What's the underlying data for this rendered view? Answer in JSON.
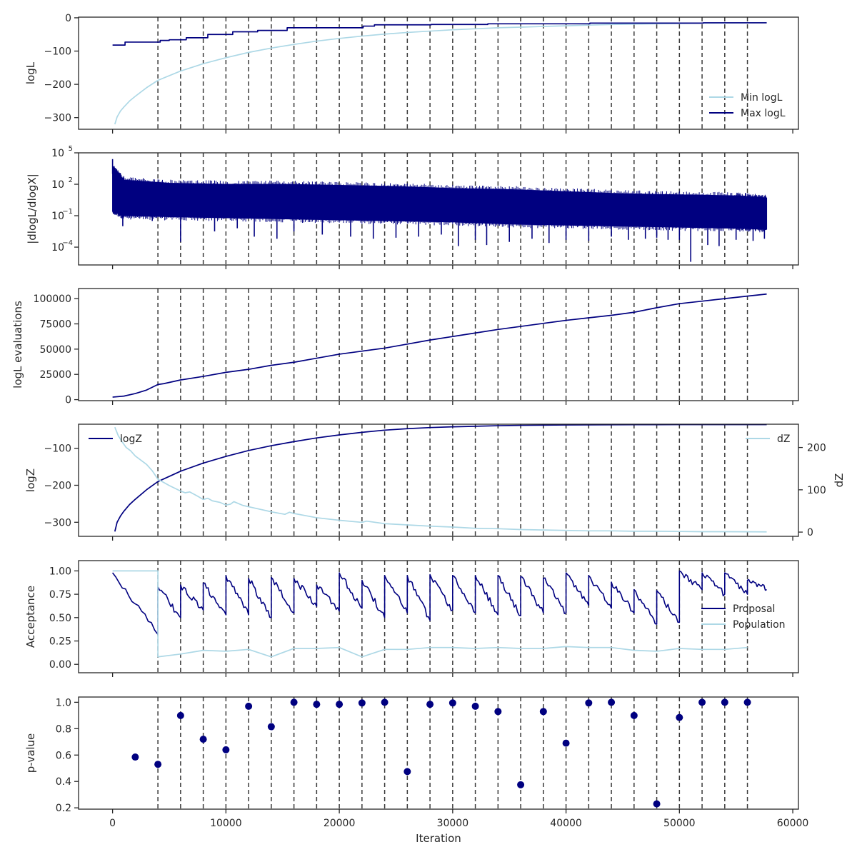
{
  "colors": {
    "dark": "#000080",
    "light": "#add8e6",
    "vline": "#3a3a3a",
    "axis": "#262626"
  },
  "vlines": [
    4000,
    6000,
    8000,
    10000,
    12000,
    14000,
    16000,
    18000,
    20000,
    22000,
    24000,
    26000,
    28000,
    30000,
    32000,
    34000,
    36000,
    38000,
    40000,
    42000,
    44000,
    46000,
    48000,
    50000,
    52000,
    54000,
    56000
  ],
  "xaxis": {
    "label": "Iteration",
    "xlim": [
      -3000,
      60500
    ],
    "ticks": [
      0,
      10000,
      20000,
      30000,
      40000,
      50000,
      60000
    ],
    "tick_labels": [
      "0",
      "10000",
      "20000",
      "30000",
      "40000",
      "50000",
      "60000"
    ]
  },
  "chart_data": [
    {
      "type": "line",
      "ylabel": "logL",
      "ylim": [
        -335,
        2
      ],
      "yticks": [
        0,
        -100,
        -200,
        -300
      ],
      "ytick_labels": [
        "0",
        "−100",
        "−200",
        "−300"
      ],
      "legend": {
        "position": "lower-right",
        "entries": [
          "Min logL",
          "Max logL"
        ]
      },
      "series": [
        {
          "name": "Min logL",
          "color": "light",
          "x": [
            200,
            400,
            700,
            1000,
            1500,
            2000,
            3000,
            4000,
            6000,
            8000,
            10000,
            12000,
            14000,
            16000,
            18000,
            20000,
            22000,
            24000,
            26000,
            28000,
            30000,
            32000,
            34000,
            36000,
            38000,
            40000,
            42000,
            44000,
            46000,
            48000,
            50000,
            52000,
            54000,
            56000,
            57700
          ],
          "y": [
            -320,
            -298,
            -280,
            -268,
            -250,
            -236,
            -210,
            -188,
            -160,
            -138,
            -120,
            -104,
            -91,
            -80,
            -70,
            -62,
            -55,
            -49,
            -44,
            -40,
            -36,
            -33,
            -30,
            -28,
            -26,
            -24,
            -22,
            -20,
            -19,
            -18,
            -17,
            -16,
            -15.5,
            -15,
            -14.5
          ]
        },
        {
          "name": "Max logL",
          "color": "dark",
          "step": true,
          "x": [
            0,
            1000,
            1100,
            4000,
            4200,
            4900,
            5000,
            6400,
            6500,
            8300,
            8400,
            10500,
            10600,
            12700,
            12800,
            15300,
            15400,
            22000,
            22100,
            23000,
            23100,
            28000,
            28100,
            33000,
            33100,
            42000,
            42100,
            52000,
            52100,
            57700
          ],
          "y": [
            -82,
            -82,
            -73,
            -73,
            -68,
            -68,
            -66,
            -66,
            -60,
            -60,
            -50,
            -50,
            -42,
            -42,
            -38,
            -38,
            -30,
            -30,
            -25,
            -25,
            -21,
            -21,
            -20,
            -20,
            -18,
            -18,
            -16,
            -16,
            -15,
            -15
          ]
        }
      ]
    },
    {
      "type": "line",
      "ylabel": "|dlogL/dlogX|",
      "yscale": "log",
      "ylim_log10": [
        -5.7,
        5
      ],
      "yticks_log10": [
        5,
        2,
        -1,
        -4
      ],
      "ytick_labels": [
        "10",
        "10",
        "10",
        "10"
      ],
      "ytick_exponents": [
        "5",
        "2",
        "−1",
        "−4"
      ],
      "band": {
        "name": "|dlogL/dlogX|",
        "color": "dark",
        "x": [
          0,
          1000,
          5000,
          10000,
          15000,
          20000,
          25000,
          30000,
          35000,
          40000,
          45000,
          50000,
          55000,
          57700
        ],
        "upper_log10": [
          3.6,
          2.4,
          2.1,
          2.0,
          2.0,
          1.9,
          1.8,
          1.6,
          1.5,
          1.3,
          1.1,
          1.0,
          0.9,
          0.7
        ],
        "lower_log10": [
          -0.6,
          -1.0,
          -1.1,
          -1.2,
          -1.3,
          -1.4,
          -1.5,
          -1.6,
          -1.8,
          -1.9,
          -2.0,
          -2.1,
          -2.2,
          -2.3
        ]
      },
      "spikes": [
        {
          "x": 0,
          "log10": 4.4
        },
        {
          "x": 900,
          "log10": -2.0
        },
        {
          "x": 3500,
          "log10": -1.5
        },
        {
          "x": 6000,
          "log10": -3.5
        },
        {
          "x": 9000,
          "log10": -2.5
        },
        {
          "x": 11000,
          "log10": -2.2
        },
        {
          "x": 12500,
          "log10": -3.0
        },
        {
          "x": 14500,
          "log10": -3.2
        },
        {
          "x": 16000,
          "log10": -2.5
        },
        {
          "x": 18500,
          "log10": -2.8
        },
        {
          "x": 21000,
          "log10": -3.0
        },
        {
          "x": 23000,
          "log10": -3.2
        },
        {
          "x": 25000,
          "log10": -3.1
        },
        {
          "x": 27000,
          "log10": -3.0
        },
        {
          "x": 29000,
          "log10": -2.8
        },
        {
          "x": 30500,
          "log10": -3.9
        },
        {
          "x": 32000,
          "log10": -3.3
        },
        {
          "x": 33000,
          "log10": -3.8
        },
        {
          "x": 35000,
          "log10": -3.5
        },
        {
          "x": 37000,
          "log10": -3.2
        },
        {
          "x": 38500,
          "log10": -3.6
        },
        {
          "x": 40000,
          "log10": -3.3
        },
        {
          "x": 42000,
          "log10": -3.4
        },
        {
          "x": 44000,
          "log10": -3.0
        },
        {
          "x": 45500,
          "log10": -3.3
        },
        {
          "x": 47000,
          "log10": -3.2
        },
        {
          "x": 48000,
          "log10": -3.1
        },
        {
          "x": 49000,
          "log10": -3.3
        },
        {
          "x": 50000,
          "log10": -3.3
        },
        {
          "x": 51000,
          "log10": -5.4
        },
        {
          "x": 52500,
          "log10": -3.8
        },
        {
          "x": 53500,
          "log10": -3.9
        },
        {
          "x": 55000,
          "log10": -3.3
        },
        {
          "x": 56500,
          "log10": -3.4
        },
        {
          "x": 57500,
          "log10": -3.2
        }
      ]
    },
    {
      "type": "line",
      "ylabel": "logL evaluations",
      "ylim": [
        -1000,
        110000
      ],
      "yticks": [
        0,
        25000,
        50000,
        75000,
        100000
      ],
      "ytick_labels": [
        "0",
        "25000",
        "50000",
        "75000",
        "100000"
      ],
      "series": [
        {
          "name": "logL evaluations",
          "color": "dark",
          "x": [
            0,
            1000,
            2000,
            3000,
            4000,
            4500,
            6000,
            8000,
            10000,
            12000,
            14000,
            16000,
            18000,
            20000,
            22000,
            24000,
            26000,
            28000,
            30000,
            32000,
            34000,
            36000,
            38000,
            40000,
            42000,
            44000,
            46000,
            48000,
            50000,
            52000,
            54000,
            56000,
            57700
          ],
          "y": [
            2500,
            3500,
            6000,
            9500,
            15000,
            15800,
            19500,
            23000,
            27000,
            30000,
            34000,
            37000,
            41000,
            45000,
            48000,
            51000,
            55000,
            59000,
            62500,
            66000,
            69500,
            72500,
            75500,
            78500,
            81000,
            83500,
            86500,
            91000,
            95000,
            97500,
            100000,
            102500,
            104500
          ]
        }
      ]
    },
    {
      "type": "line",
      "ylabel": "logZ",
      "ylim": [
        -338,
        -35
      ],
      "yticks": [
        -100,
        -200,
        -300
      ],
      "ytick_labels": [
        "−100",
        "−200",
        "−300"
      ],
      "y2label": "dZ",
      "y2lim": [
        -10,
        255
      ],
      "y2ticks": [
        0,
        100,
        200
      ],
      "y2tick_labels": [
        "0",
        "100",
        "200"
      ],
      "legend": {
        "entries": [
          "logZ",
          "dZ"
        ],
        "positions": [
          "upper-left",
          "upper-right"
        ]
      },
      "series": [
        {
          "name": "logZ",
          "color": "dark",
          "axis": "left",
          "x": [
            200,
            400,
            700,
            1000,
            1500,
            2000,
            3000,
            4000,
            6000,
            8000,
            10000,
            12000,
            14000,
            16000,
            18000,
            20000,
            22000,
            24000,
            26000,
            28000,
            30000,
            32000,
            34000,
            36000,
            38000,
            40000,
            42000,
            44000,
            46000,
            48000,
            50000,
            52000,
            54000,
            56000,
            57700
          ],
          "y": [
            -325,
            -300,
            -283,
            -270,
            -252,
            -238,
            -212,
            -190,
            -162,
            -140,
            -122,
            -106,
            -93,
            -82,
            -72,
            -64,
            -57,
            -51,
            -47,
            -44,
            -42,
            -40.5,
            -39,
            -38,
            -37.5,
            -37,
            -36.7,
            -36.5,
            -36.3,
            -36.2,
            -36.1,
            -36,
            -36,
            -36,
            -36
          ]
        },
        {
          "name": "dZ",
          "color": "light",
          "axis": "right",
          "x": [
            200,
            500,
            800,
            1200,
            1600,
            2000,
            2600,
            3000,
            3500,
            4000,
            5000,
            6000,
            6400,
            6800,
            7500,
            8000,
            8400,
            8800,
            9500,
            10000,
            10400,
            10700,
            11500,
            12500,
            14000,
            15200,
            15600,
            16000,
            17000,
            18000,
            20000,
            22000,
            22400,
            24000,
            26000,
            28000,
            30000,
            32000,
            34000,
            36000,
            38000,
            40000,
            42000,
            44000,
            46000,
            48000,
            50000,
            52000,
            54000,
            56000,
            57700
          ],
          "y": [
            248,
            228,
            215,
            200,
            192,
            180,
            168,
            160,
            145,
            125,
            110,
            97,
            93,
            95,
            85,
            77,
            80,
            74,
            70,
            64,
            66,
            72,
            63,
            57,
            48,
            42,
            47,
            44,
            39,
            34,
            28,
            23,
            26,
            20,
            17,
            14,
            12,
            9,
            8,
            6,
            5,
            4,
            3,
            3,
            2,
            2,
            1.5,
            1,
            1,
            0.8,
            0.5
          ]
        }
      ]
    },
    {
      "type": "line",
      "ylabel": "Acceptance",
      "ylim": [
        -0.09,
        1.11
      ],
      "yticks": [
        0,
        0.25,
        0.5,
        0.75,
        1.0
      ],
      "ytick_labels": [
        "0.00",
        "0.25",
        "0.50",
        "0.75",
        "1.00"
      ],
      "legend": {
        "position": "center-right",
        "entries": [
          "Proposal",
          "Population"
        ]
      },
      "sawtooth": {
        "name": "Proposal",
        "color": "dark",
        "segments": [
          {
            "x0": 0,
            "x1": 4000,
            "y0": 0.98,
            "y1": 0.32
          },
          {
            "x0": 4000,
            "x1": 6000,
            "y0": 0.83,
            "y1": 0.5
          },
          {
            "x0": 6000,
            "x1": 8000,
            "y0": 0.85,
            "y1": 0.58
          },
          {
            "x0": 8000,
            "x1": 10000,
            "y0": 0.87,
            "y1": 0.53
          },
          {
            "x0": 10000,
            "x1": 12000,
            "y0": 0.95,
            "y1": 0.53
          },
          {
            "x0": 12000,
            "x1": 14000,
            "y0": 0.92,
            "y1": 0.5
          },
          {
            "x0": 14000,
            "x1": 16000,
            "y0": 0.93,
            "y1": 0.55
          },
          {
            "x0": 16000,
            "x1": 18000,
            "y0": 0.92,
            "y1": 0.62
          },
          {
            "x0": 18000,
            "x1": 20000,
            "y0": 0.85,
            "y1": 0.57
          },
          {
            "x0": 20000,
            "x1": 22000,
            "y0": 0.98,
            "y1": 0.6
          },
          {
            "x0": 22000,
            "x1": 24000,
            "y0": 0.9,
            "y1": 0.5
          },
          {
            "x0": 24000,
            "x1": 26000,
            "y0": 0.95,
            "y1": 0.55
          },
          {
            "x0": 26000,
            "x1": 28000,
            "y0": 0.95,
            "y1": 0.47
          },
          {
            "x0": 28000,
            "x1": 30000,
            "y0": 0.96,
            "y1": 0.58
          },
          {
            "x0": 30000,
            "x1": 32000,
            "y0": 0.95,
            "y1": 0.55
          },
          {
            "x0": 32000,
            "x1": 34000,
            "y0": 0.95,
            "y1": 0.53
          },
          {
            "x0": 34000,
            "x1": 36000,
            "y0": 0.95,
            "y1": 0.52
          },
          {
            "x0": 36000,
            "x1": 38000,
            "y0": 0.94,
            "y1": 0.55
          },
          {
            "x0": 38000,
            "x1": 40000,
            "y0": 0.92,
            "y1": 0.55
          },
          {
            "x0": 40000,
            "x1": 42000,
            "y0": 0.98,
            "y1": 0.63
          },
          {
            "x0": 42000,
            "x1": 44000,
            "y0": 0.95,
            "y1": 0.6
          },
          {
            "x0": 44000,
            "x1": 46000,
            "y0": 0.88,
            "y1": 0.55
          },
          {
            "x0": 46000,
            "x1": 48000,
            "y0": 0.8,
            "y1": 0.43
          },
          {
            "x0": 48000,
            "x1": 50000,
            "y0": 0.79,
            "y1": 0.45
          },
          {
            "x0": 50000,
            "x1": 52000,
            "y0": 1.0,
            "y1": 0.8
          },
          {
            "x0": 52000,
            "x1": 54000,
            "y0": 0.98,
            "y1": 0.75
          },
          {
            "x0": 54000,
            "x1": 56000,
            "y0": 0.98,
            "y1": 0.75
          },
          {
            "x0": 56000,
            "x1": 57700,
            "y0": 0.9,
            "y1": 0.8
          }
        ]
      },
      "series": [
        {
          "name": "Population",
          "color": "light",
          "x": [
            0,
            4000,
            4000,
            6000,
            8000,
            10000,
            12000,
            14000,
            16000,
            18000,
            20000,
            22000,
            24000,
            26000,
            28000,
            30000,
            32000,
            34000,
            36000,
            38000,
            40000,
            42000,
            44000,
            46000,
            48000,
            50000,
            52000,
            54000,
            56000
          ],
          "y": [
            1.0,
            1.0,
            0.08,
            0.11,
            0.15,
            0.14,
            0.16,
            0.08,
            0.17,
            0.17,
            0.18,
            0.08,
            0.16,
            0.16,
            0.18,
            0.18,
            0.17,
            0.18,
            0.17,
            0.17,
            0.19,
            0.18,
            0.18,
            0.15,
            0.14,
            0.17,
            0.16,
            0.16,
            0.18
          ]
        }
      ]
    },
    {
      "type": "scatter",
      "ylabel": "p-value",
      "ylim": [
        0.19,
        1.04
      ],
      "yticks": [
        0.2,
        0.4,
        0.6,
        0.8,
        1.0
      ],
      "ytick_labels": [
        "0.2",
        "0.4",
        "0.6",
        "0.8",
        "1.0"
      ],
      "series": [
        {
          "name": "p-value",
          "color": "dark",
          "x": [
            2000,
            4000,
            6000,
            8000,
            10000,
            12000,
            14000,
            16000,
            18000,
            20000,
            22000,
            24000,
            26000,
            28000,
            30000,
            32000,
            34000,
            36000,
            38000,
            40000,
            42000,
            44000,
            46000,
            48000,
            50000,
            52000,
            54000,
            56000
          ],
          "y": [
            0.585,
            0.53,
            0.9,
            0.72,
            0.64,
            0.97,
            0.815,
            1.0,
            0.985,
            0.985,
            0.995,
            1.0,
            0.475,
            0.985,
            0.995,
            0.97,
            0.93,
            0.375,
            0.93,
            0.69,
            0.995,
            1.0,
            0.9,
            0.23,
            0.885,
            1.0,
            1.0,
            1.0
          ]
        }
      ]
    }
  ]
}
